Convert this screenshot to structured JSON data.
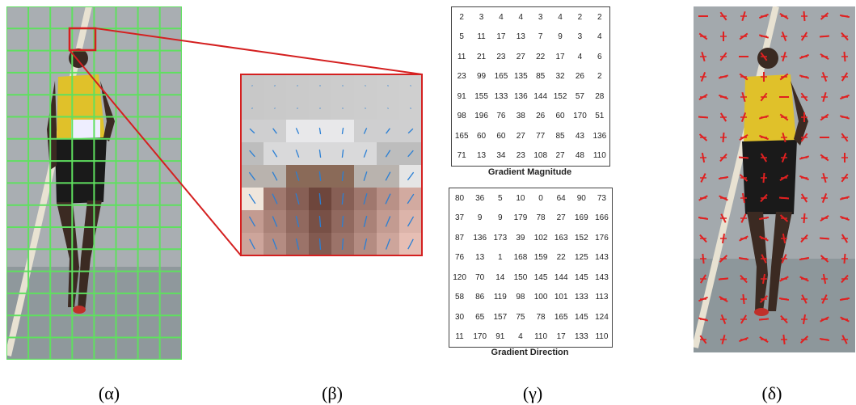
{
  "panels": {
    "labels": [
      "(α)",
      "(β)",
      "(γ)",
      "(δ)"
    ]
  },
  "magnitude": {
    "caption": "Gradient Magnitude",
    "rows": [
      [
        2,
        3,
        4,
        4,
        3,
        4,
        2,
        2
      ],
      [
        5,
        11,
        17,
        13,
        7,
        9,
        3,
        4
      ],
      [
        11,
        21,
        23,
        27,
        22,
        17,
        4,
        6
      ],
      [
        23,
        99,
        165,
        135,
        85,
        32,
        26,
        2
      ],
      [
        91,
        155,
        133,
        136,
        144,
        152,
        57,
        28
      ],
      [
        98,
        196,
        76,
        38,
        26,
        60,
        170,
        51
      ],
      [
        165,
        60,
        60,
        27,
        77,
        85,
        43,
        136
      ],
      [
        71,
        13,
        34,
        23,
        108,
        27,
        48,
        110
      ]
    ]
  },
  "direction": {
    "caption": "Gradient Direction",
    "rows": [
      [
        80,
        36,
        5,
        10,
        0,
        64,
        90,
        73
      ],
      [
        37,
        9,
        9,
        179,
        78,
        27,
        169,
        166
      ],
      [
        87,
        136,
        173,
        39,
        102,
        163,
        152,
        176
      ],
      [
        76,
        13,
        1,
        168,
        159,
        22,
        125,
        143
      ],
      [
        120,
        70,
        14,
        150,
        145,
        144,
        145,
        143
      ],
      [
        58,
        86,
        119,
        98,
        100,
        101,
        133,
        113
      ],
      [
        30,
        65,
        157,
        75,
        78,
        165,
        145,
        124
      ],
      [
        11,
        170,
        91,
        4,
        110,
        17,
        133,
        110
      ]
    ]
  }
}
